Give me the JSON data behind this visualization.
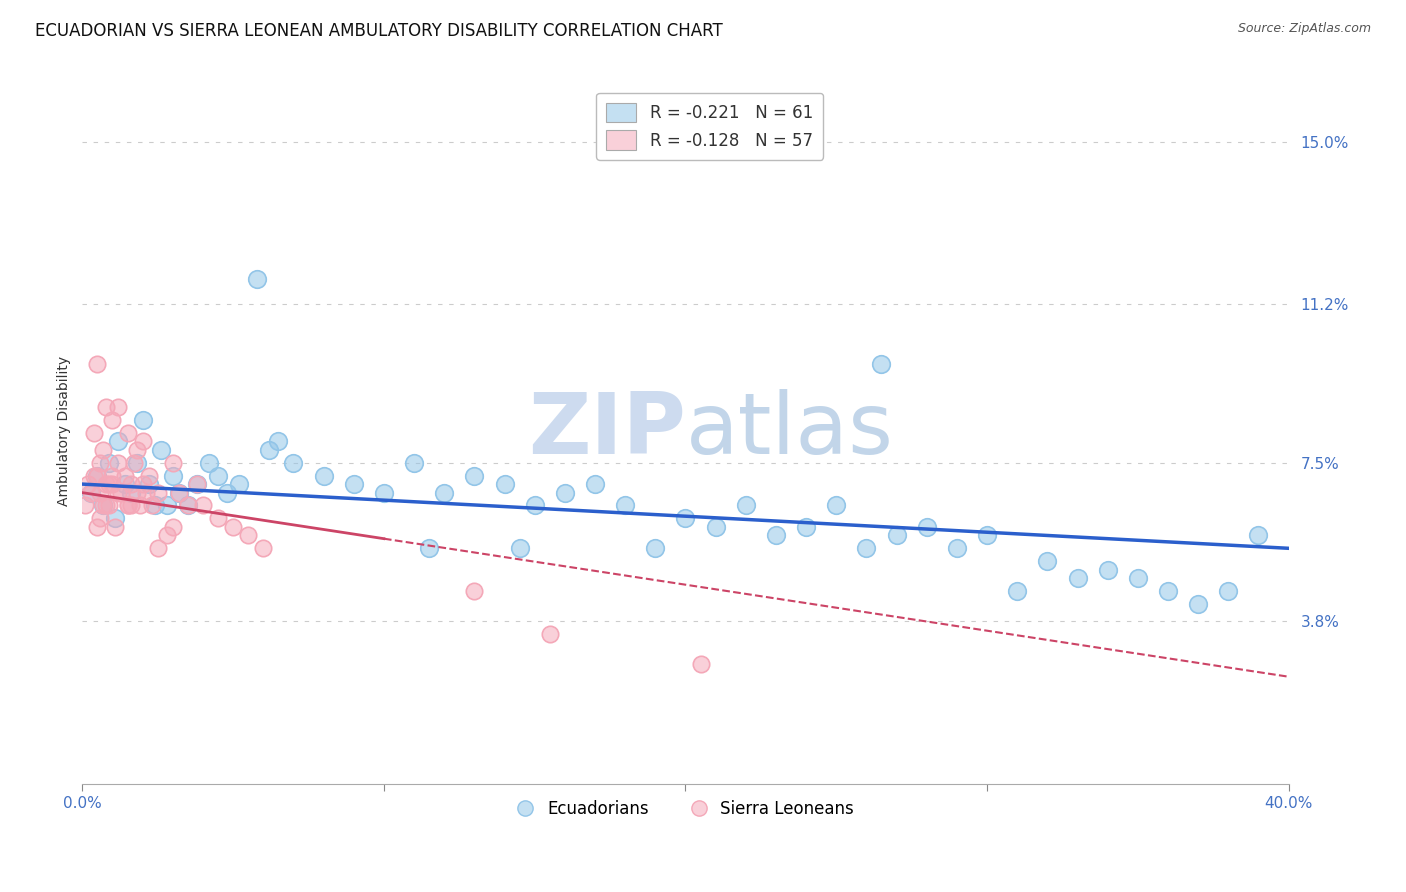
{
  "title": "ECUADORIAN VS SIERRA LEONEAN AMBULATORY DISABILITY CORRELATION CHART",
  "source": "Source: ZipAtlas.com",
  "ylabel": "Ambulatory Disability",
  "xlim": [
    0.0,
    40.0
  ],
  "ylim": [
    0.0,
    16.5
  ],
  "yticks": [
    3.8,
    7.5,
    11.2,
    15.0
  ],
  "xticks": [
    0.0,
    40.0
  ],
  "legend_r1": "R = -0.221   N = 61",
  "legend_r2": "R = -0.128   N = 57",
  "legend_label1": "Ecuadorians",
  "legend_label2": "Sierra Leoneans",
  "blue_color": "#92C5E8",
  "pink_color": "#F4A8B8",
  "blue_line_color": "#2B5FCC",
  "pink_line_color": "#CC4466",
  "blue_tick_color": "#4472C4",
  "background_color": "#FFFFFF",
  "grid_color": "#CCCCCC",
  "watermark_text": "ZIPatlas",
  "title_fontsize": 12,
  "axis_label_fontsize": 10,
  "tick_fontsize": 11,
  "blue_scatter_x": [
    0.3,
    0.5,
    0.7,
    0.9,
    1.1,
    1.2,
    1.4,
    1.6,
    1.8,
    2.0,
    2.2,
    2.4,
    2.6,
    2.8,
    3.0,
    3.2,
    3.5,
    3.8,
    4.2,
    4.5,
    4.8,
    5.2,
    5.8,
    6.5,
    7.0,
    8.0,
    9.0,
    10.0,
    11.0,
    12.0,
    13.0,
    14.0,
    15.0,
    16.0,
    17.0,
    18.0,
    19.0,
    20.0,
    21.0,
    22.0,
    23.0,
    24.0,
    25.0,
    26.0,
    27.0,
    28.0,
    29.0,
    30.0,
    31.0,
    32.0,
    33.0,
    34.0,
    35.0,
    36.0,
    37.0,
    38.0,
    39.0,
    26.5,
    14.5,
    6.2,
    11.5
  ],
  "blue_scatter_y": [
    6.8,
    7.2,
    6.5,
    7.5,
    6.2,
    8.0,
    7.0,
    6.8,
    7.5,
    8.5,
    7.0,
    6.5,
    7.8,
    6.5,
    7.2,
    6.8,
    6.5,
    7.0,
    7.5,
    7.2,
    6.8,
    7.0,
    11.8,
    8.0,
    7.5,
    7.2,
    7.0,
    6.8,
    7.5,
    6.8,
    7.2,
    7.0,
    6.5,
    6.8,
    7.0,
    6.5,
    5.5,
    6.2,
    6.0,
    6.5,
    5.8,
    6.0,
    6.5,
    5.5,
    5.8,
    6.0,
    5.5,
    5.8,
    4.5,
    5.2,
    4.8,
    5.0,
    4.8,
    4.5,
    4.2,
    4.5,
    5.8,
    9.8,
    5.5,
    7.8,
    5.5
  ],
  "pink_scatter_x": [
    0.1,
    0.2,
    0.3,
    0.4,
    0.5,
    0.5,
    0.6,
    0.6,
    0.7,
    0.8,
    0.8,
    0.9,
    1.0,
    1.0,
    1.1,
    1.2,
    1.2,
    1.3,
    1.4,
    1.5,
    1.5,
    1.6,
    1.7,
    1.8,
    1.9,
    2.0,
    2.0,
    2.1,
    2.2,
    2.3,
    2.5,
    2.8,
    3.0,
    3.2,
    3.5,
    3.8,
    4.0,
    4.5,
    5.0,
    5.5,
    6.0,
    2.5,
    1.8,
    1.5,
    0.8,
    0.6,
    1.0,
    0.5,
    1.2,
    0.4,
    0.7,
    0.9,
    1.6,
    3.0,
    13.0,
    15.5,
    20.5
  ],
  "pink_scatter_y": [
    6.5,
    7.0,
    6.8,
    8.2,
    9.8,
    7.2,
    7.5,
    6.2,
    7.8,
    7.0,
    8.8,
    6.5,
    7.2,
    8.5,
    6.0,
    8.8,
    7.5,
    6.8,
    7.2,
    6.5,
    8.2,
    7.0,
    7.5,
    7.8,
    6.5,
    7.0,
    8.0,
    6.8,
    7.2,
    6.5,
    6.8,
    5.8,
    7.5,
    6.8,
    6.5,
    7.0,
    6.5,
    6.2,
    6.0,
    5.8,
    5.5,
    5.5,
    6.8,
    6.5,
    6.5,
    6.8,
    7.0,
    6.0,
    6.8,
    7.2,
    6.5,
    7.0,
    6.5,
    6.0,
    4.5,
    3.5,
    2.8
  ]
}
